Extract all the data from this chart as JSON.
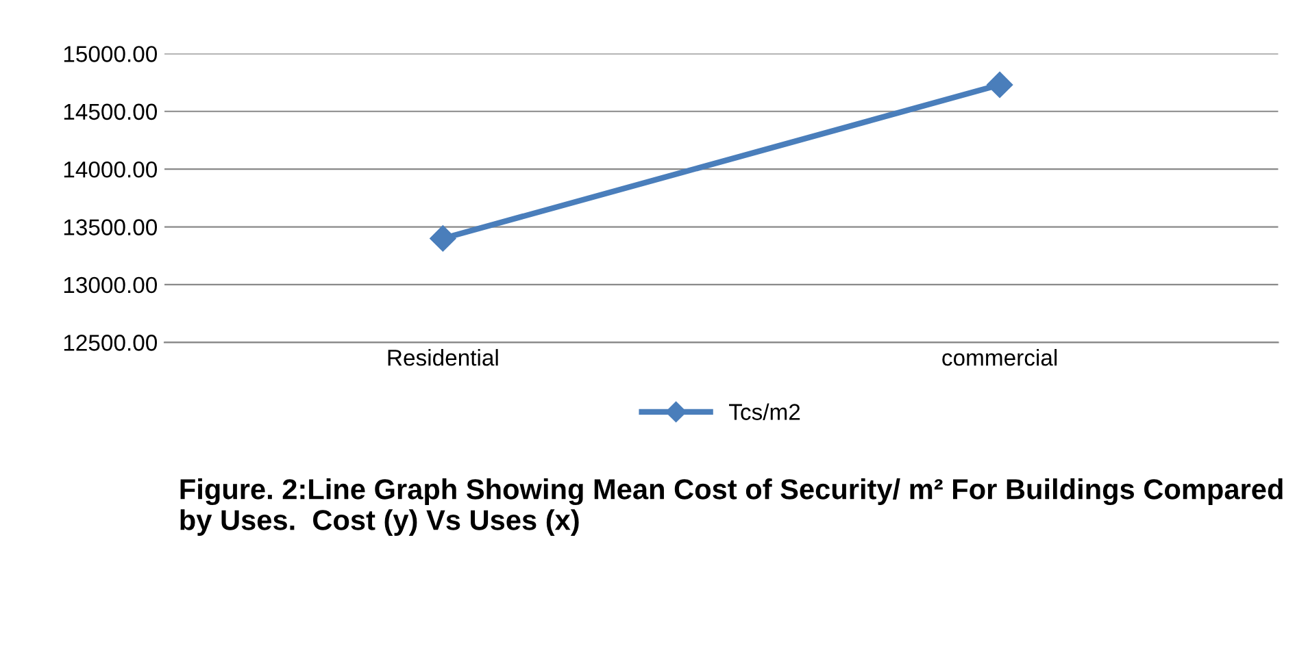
{
  "chart_data": {
    "type": "line",
    "categories": [
      "Residential",
      "commercial"
    ],
    "series": [
      {
        "name": "Tcs/m2",
        "color": "#4a7ebb",
        "values": [
          13400,
          14730
        ]
      }
    ],
    "ylim": [
      12500,
      15000
    ],
    "yticks": [
      {
        "value": 12500,
        "label": "12500.00"
      },
      {
        "value": 13000,
        "label": "13000.00"
      },
      {
        "value": 13500,
        "label": "13500.00"
      },
      {
        "value": 14000,
        "label": "14000.00"
      },
      {
        "value": 14500,
        "label": "14500.00"
      },
      {
        "value": 15000,
        "label": "15000.00"
      }
    ],
    "grid": "y",
    "legend": "bottom",
    "marker": "diamond",
    "line_style": "solid",
    "annotations": [
      "Figure. 2:Line Graph Showing Mean Cost of Security/ m² For Buildings Compared by Uses.  Cost (y) Vs Uses (x)"
    ]
  }
}
